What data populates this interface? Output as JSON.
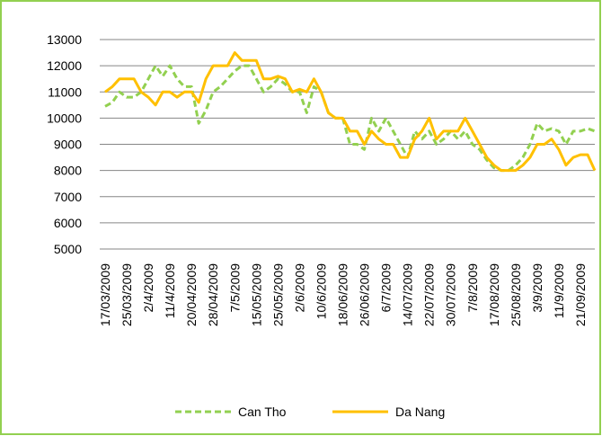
{
  "chart_data": {
    "type": "line",
    "categories": [
      "17/03/2009",
      null,
      null,
      "25/03/2009",
      null,
      null,
      "2/4/2009",
      null,
      null,
      "11/4/2009",
      null,
      null,
      "20/04/2009",
      null,
      null,
      "28/04/2009",
      null,
      null,
      "7/5/2009",
      null,
      null,
      "15/05/2009",
      null,
      null,
      "25/05/2009",
      null,
      null,
      "2/6/2009",
      null,
      null,
      "10/6/2009",
      null,
      null,
      "18/06/2009",
      null,
      null,
      "26/06/2009",
      null,
      null,
      "6/7/2009",
      null,
      null,
      "14/07/2009",
      null,
      null,
      "22/07/2009",
      null,
      null,
      "30/07/2009",
      null,
      null,
      "7/8/2009",
      null,
      null,
      "17/08/2009",
      null,
      null,
      "25/08/2009",
      null,
      null,
      "3/9/2009",
      null,
      null,
      "11/9/2009",
      null,
      null,
      "21/09/2009",
      null,
      null
    ],
    "series": [
      {
        "name": "Can Tho",
        "color": "#92d050",
        "dash": true,
        "values": [
          10450,
          10600,
          11000,
          10800,
          10800,
          11000,
          11500,
          12000,
          11600,
          12000,
          11500,
          11200,
          11200,
          9800,
          10300,
          11000,
          11200,
          11500,
          11800,
          12000,
          12000,
          11500,
          11000,
          11200,
          11500,
          11300,
          11000,
          11000,
          10200,
          11200,
          11000,
          10200,
          10000,
          10000,
          9000,
          9000,
          8800,
          10000,
          9500,
          10000,
          9500,
          9000,
          8500,
          9500,
          9200,
          9500,
          9000,
          9200,
          9500,
          9200,
          9500,
          9000,
          8800,
          8400,
          8100,
          8000,
          8000,
          8200,
          8500,
          9000,
          9800,
          9500,
          9600,
          9500,
          9000,
          9500,
          9500,
          9600,
          9500
        ]
      },
      {
        "name": "Da Nang",
        "color": "#ffc000",
        "dash": false,
        "values": [
          11000,
          11200,
          11500,
          11500,
          11500,
          11000,
          10800,
          10500,
          11000,
          11000,
          10800,
          11000,
          11000,
          10600,
          11500,
          12000,
          12000,
          12000,
          12500,
          12200,
          12200,
          12200,
          11500,
          11500,
          11600,
          11500,
          11000,
          11100,
          11000,
          11500,
          11000,
          10200,
          10000,
          10000,
          9500,
          9500,
          9000,
          9500,
          9200,
          9000,
          9000,
          8500,
          8500,
          9200,
          9500,
          10000,
          9200,
          9500,
          9500,
          9500,
          10000,
          9500,
          9000,
          8500,
          8200,
          8000,
          8000,
          8000,
          8200,
          8500,
          9000,
          9000,
          9200,
          8800,
          8200,
          8500,
          8600,
          8600,
          8000
        ]
      }
    ],
    "ylim": [
      5000,
      13000
    ],
    "yticks": [
      5000,
      6000,
      7000,
      8000,
      9000,
      10000,
      11000,
      12000,
      13000
    ],
    "grid": true
  }
}
